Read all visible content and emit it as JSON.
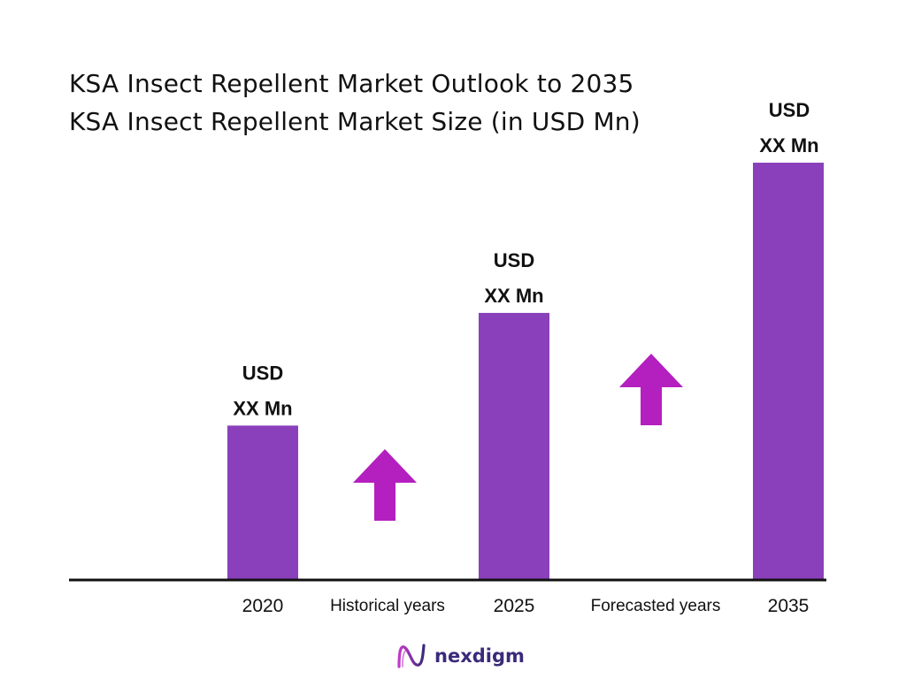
{
  "colors": {
    "bar": "#8a40bb",
    "arrow": "#b41fbf",
    "axis": "#111111",
    "text": "#111111",
    "brand": "#3b2a7a"
  },
  "chart_data": {
    "type": "bar",
    "title": "KSA Insect Repellent Market Outlook to 2035",
    "subtitle": "KSA Insect Repellent Market Size (in USD Mn)",
    "categories": [
      "2020",
      "2025",
      "2035"
    ],
    "values": [
      37,
      64,
      100
    ],
    "bar_labels": [
      [
        "USD",
        "XX Mn"
      ],
      [
        "USD",
        "XX Mn"
      ],
      [
        "USD",
        "XX Mn"
      ]
    ],
    "period_labels": [
      "Historical years",
      "Forecasted years"
    ],
    "ylim": [
      0,
      100
    ],
    "grid": false,
    "legend": "none",
    "series": [
      {
        "values": [
          37,
          64,
          100
        ]
      }
    ]
  },
  "brand": {
    "name": "nexdigm",
    "icon": "nexdigm-logo-icon"
  }
}
